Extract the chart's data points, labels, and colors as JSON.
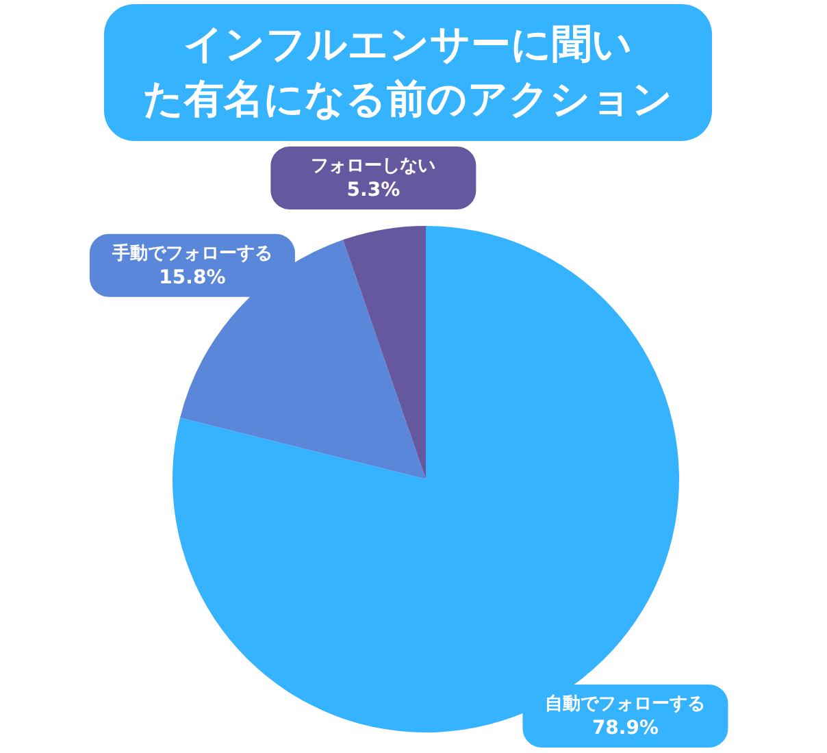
{
  "chart_data": {
    "type": "pie",
    "title": "インフルエンサーに聞いた有名になる前のアクション",
    "categories": [
      "自動でフォローする",
      "手動でフォローする",
      "フォローしない"
    ],
    "values": [
      78.9,
      15.8,
      5.3
    ],
    "colors": [
      "#35b3ff",
      "#5b87db",
      "#66589e"
    ],
    "value_labels": [
      "78.9%",
      "15.8%",
      "5.3%"
    ]
  }
}
